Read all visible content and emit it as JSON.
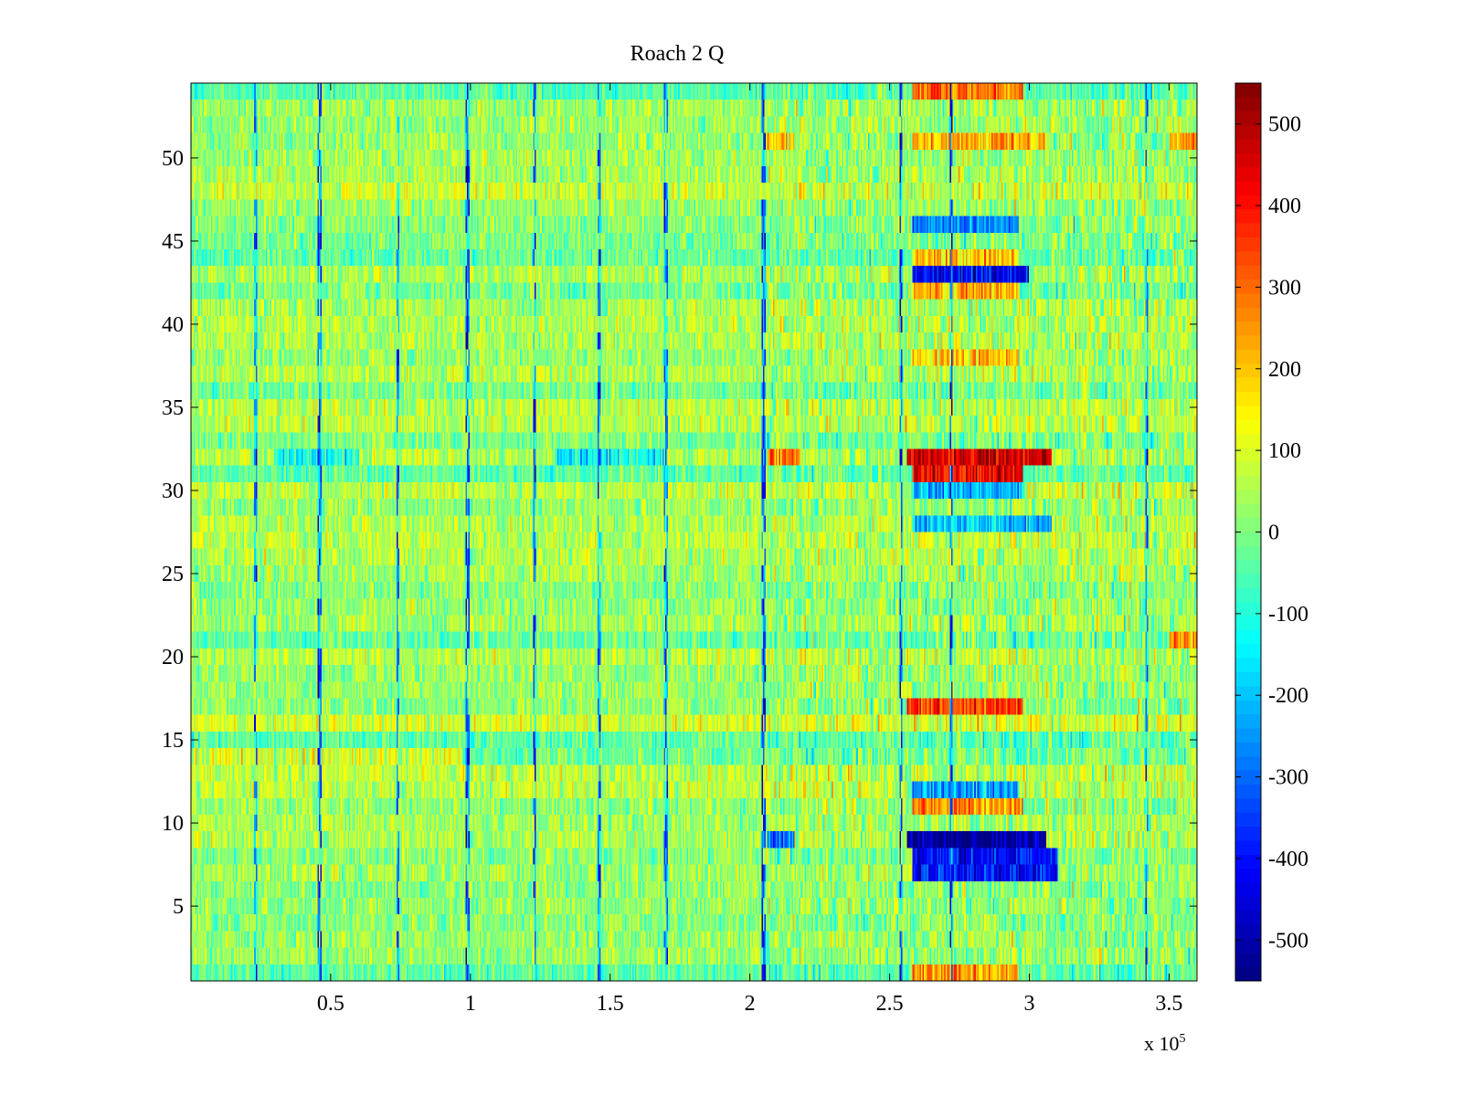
{
  "chart_data": {
    "type": "heatmap",
    "title": "Roach 2 Q",
    "xlabel": "",
    "ylabel": "",
    "x_exponent_label": "x 10",
    "x_exponent_power": "5",
    "xlim": [
      0,
      3.6
    ],
    "ylim": [
      0.5,
      54.5
    ],
    "x_ticks": [
      0.5,
      1,
      1.5,
      2,
      2.5,
      3,
      3.5
    ],
    "x_tick_labels": [
      "0.5",
      "1",
      "1.5",
      "2",
      "2.5",
      "3",
      "3.5"
    ],
    "y_ticks": [
      5,
      10,
      15,
      20,
      25,
      30,
      35,
      40,
      45,
      50
    ],
    "y_tick_labels": [
      "5",
      "10",
      "15",
      "20",
      "25",
      "30",
      "35",
      "40",
      "45",
      "50"
    ],
    "rows": 54,
    "colormap": "jet",
    "clim": [
      -550,
      550
    ],
    "colorbar": {
      "ticks": [
        500,
        400,
        300,
        200,
        100,
        0,
        -100,
        -200,
        -300,
        -400,
        -500
      ],
      "tick_labels": [
        "500",
        "400",
        "300",
        "200",
        "100",
        "0",
        "-100",
        "-200",
        "-300",
        "-400",
        "-500"
      ],
      "placement": "right"
    },
    "background_mean": 20,
    "dominant_features": [
      {
        "rows": [
          32,
          32
        ],
        "x_range": [
          2.56,
          3.08
        ],
        "value": 460
      },
      {
        "rows": [
          31,
          31
        ],
        "x_range": [
          2.58,
          2.98
        ],
        "value": 430
      },
      {
        "rows": [
          9,
          9
        ],
        "x_range": [
          2.56,
          3.06
        ],
        "value": -540
      },
      {
        "rows": [
          8,
          8
        ],
        "x_range": [
          2.58,
          3.1
        ],
        "value": -400
      },
      {
        "rows": [
          7,
          7
        ],
        "x_range": [
          2.58,
          3.1
        ],
        "value": -390
      },
      {
        "rows": [
          43,
          43
        ],
        "x_range": [
          2.58,
          3.0
        ],
        "value": -420
      },
      {
        "rows": [
          46,
          46
        ],
        "x_range": [
          2.58,
          2.96
        ],
        "value": -260
      },
      {
        "rows": [
          17,
          17
        ],
        "x_range": [
          2.56,
          2.98
        ],
        "value": 350
      },
      {
        "rows": [
          11,
          11
        ],
        "x_range": [
          2.58,
          2.98
        ],
        "value": 250
      },
      {
        "rows": [
          12,
          12
        ],
        "x_range": [
          2.58,
          2.96
        ],
        "value": -230
      },
      {
        "rows": [
          30,
          30
        ],
        "x_range": [
          2.58,
          2.98
        ],
        "value": -200
      },
      {
        "rows": [
          54,
          54
        ],
        "x_range": [
          2.58,
          2.98
        ],
        "value": 290
      },
      {
        "rows": [
          51,
          51
        ],
        "x_range": [
          2.58,
          3.06
        ],
        "value": 230
      },
      {
        "rows": [
          1,
          1
        ],
        "x_range": [
          2.58,
          2.96
        ],
        "value": 240
      },
      {
        "rows": [
          38,
          38
        ],
        "x_range": [
          2.58,
          2.96
        ],
        "value": 200
      },
      {
        "rows": [
          42,
          42
        ],
        "x_range": [
          2.58,
          2.96
        ],
        "value": 220
      },
      {
        "rows": [
          44,
          44
        ],
        "x_range": [
          2.58,
          2.96
        ],
        "value": 190
      },
      {
        "rows": [
          28,
          28
        ],
        "x_range": [
          2.58,
          3.08
        ],
        "value": -190
      },
      {
        "rows": [
          32,
          32
        ],
        "x_range": [
          2.06,
          2.18
        ],
        "value": 280
      },
      {
        "rows": [
          51,
          51
        ],
        "x_range": [
          2.06,
          2.16
        ],
        "value": 200
      },
      {
        "rows": [
          9,
          9
        ],
        "x_range": [
          2.06,
          2.16
        ],
        "value": -300
      },
      {
        "rows": [
          32,
          32
        ],
        "x_range": [
          0.3,
          0.6
        ],
        "value": -120
      },
      {
        "rows": [
          32,
          32
        ],
        "x_range": [
          1.3,
          1.7
        ],
        "value": -130
      },
      {
        "rows": [
          14,
          14
        ],
        "x_range": [
          0.0,
          1.0
        ],
        "value": 90
      },
      {
        "rows": [
          51,
          51
        ],
        "x_range": [
          3.5,
          3.6
        ],
        "value": 230
      },
      {
        "rows": [
          21,
          21
        ],
        "x_range": [
          3.5,
          3.6
        ],
        "value": 280
      }
    ],
    "vertical_streaks": [
      {
        "x": 0.46,
        "value": -300
      },
      {
        "x": 0.74,
        "value": -280
      },
      {
        "x": 0.99,
        "value": -300
      },
      {
        "x": 1.23,
        "value": -260
      },
      {
        "x": 1.46,
        "value": -280
      },
      {
        "x": 1.7,
        "value": -250
      },
      {
        "x": 2.05,
        "value": -320
      },
      {
        "x": 2.54,
        "value": -300
      },
      {
        "x": 2.72,
        "value": -320
      },
      {
        "x": 0.23,
        "value": -200
      },
      {
        "x": 3.42,
        "value": -220
      }
    ]
  }
}
